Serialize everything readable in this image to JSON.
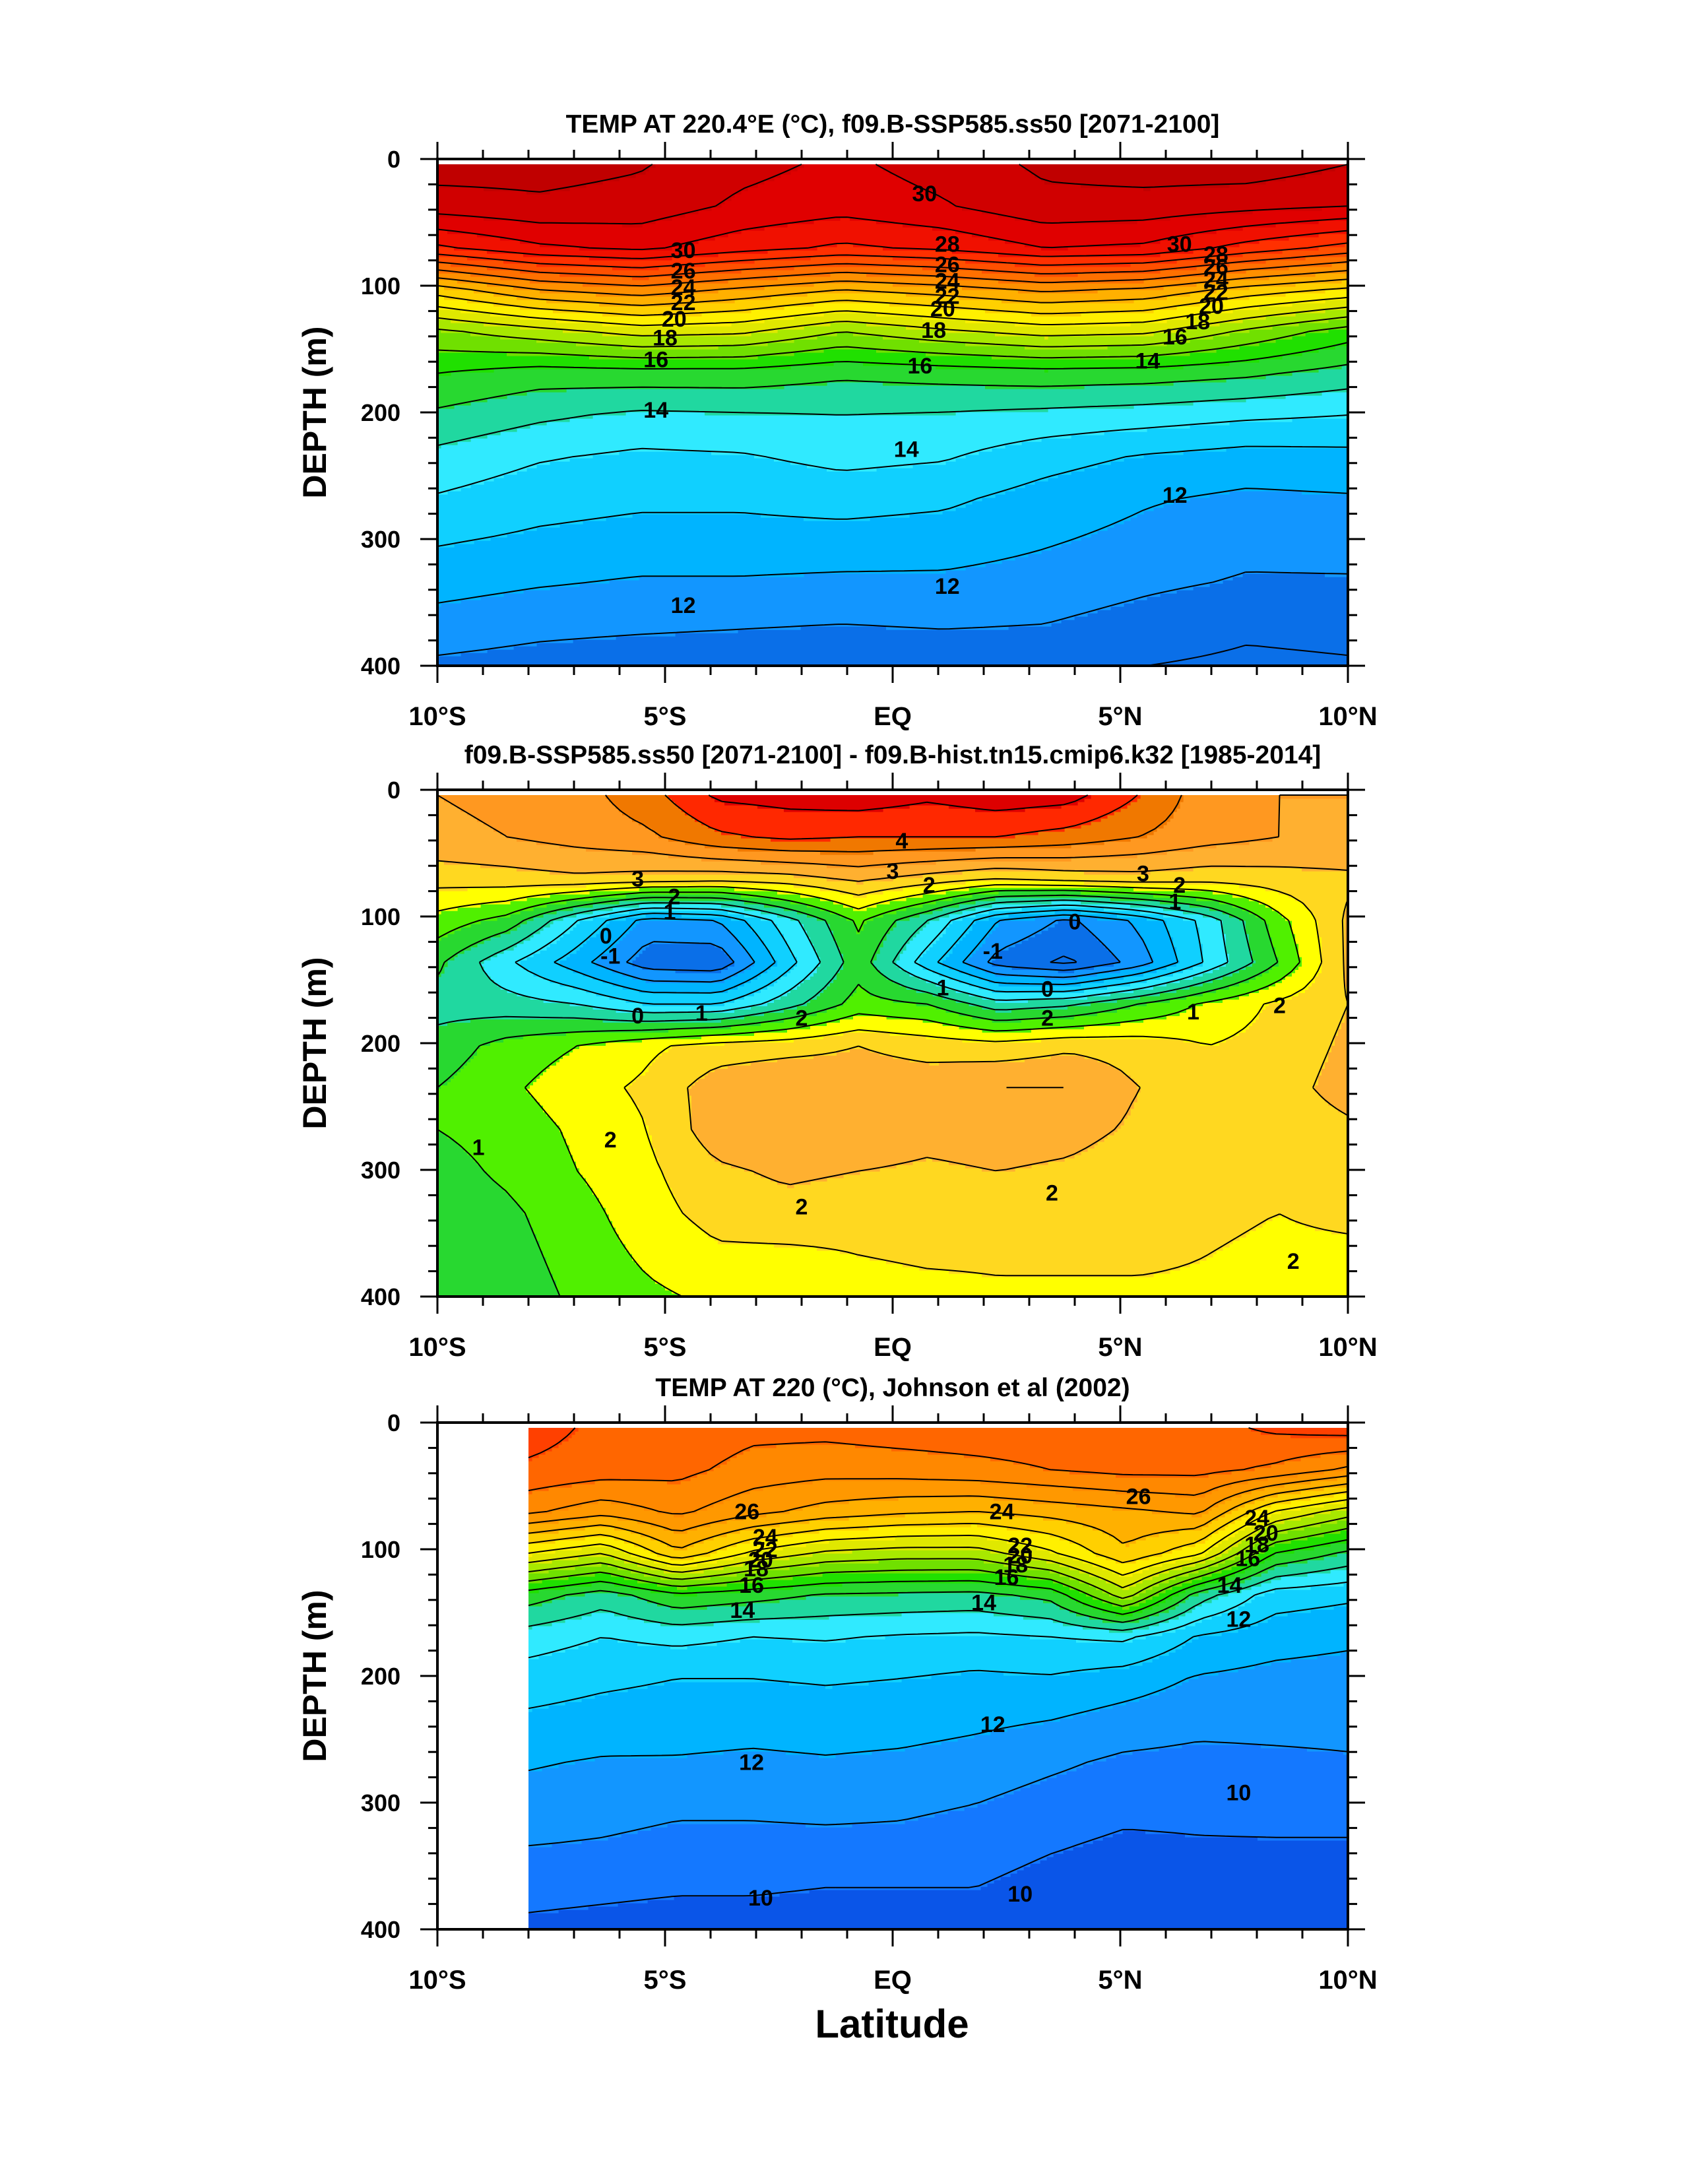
{
  "figure": {
    "xlabel": "Latitude"
  },
  "chart_data": [
    {
      "type": "heatmap",
      "title": "TEMP AT 220.4°E (°C), f09.B-SSP585.ss50 [2071-2100]",
      "ylabel": "DEPTH (m)",
      "x_ticks": [
        "10°S",
        "5°S",
        "EQ",
        "5°N",
        "10°N"
      ],
      "x_tick_values": [
        -10,
        -5,
        0,
        5,
        10
      ],
      "y_ticks": [
        "0",
        "100",
        "200",
        "300",
        "400"
      ],
      "y_tick_values": [
        0,
        100,
        200,
        300,
        400
      ],
      "xlim": [
        -10,
        10
      ],
      "ylim": [
        400,
        0
      ],
      "data_extent": [
        -10,
        10
      ],
      "color_levels": [
        10,
        11,
        12,
        13,
        14,
        15,
        16,
        17,
        18,
        19,
        20,
        21,
        22,
        23,
        24,
        25,
        26,
        27,
        28,
        29,
        30,
        31
      ],
      "colors": [
        "#0a6fe8",
        "#1296ff",
        "#00b4ff",
        "#10d0ff",
        "#30eaff",
        "#20d8a0",
        "#28d830",
        "#20e000",
        "#70e000",
        "#a8e800",
        "#e0e800",
        "#fff000",
        "#ffd000",
        "#ffb000",
        "#ff9000",
        "#ff7000",
        "#ff5000",
        "#ff3000",
        "#f01000",
        "#e00000",
        "#d00000",
        "#c00000"
      ],
      "field": [
        [
          31.5,
          31.4,
          31.1,
          30.3,
          29.8,
          30.4,
          31.2,
          31.5,
          31.6,
          31.0
        ],
        [
          30.5,
          30.8,
          30.6,
          29.8,
          29.4,
          29.9,
          30.7,
          30.6,
          30.3,
          30.0
        ],
        [
          27.8,
          28.8,
          29.2,
          28.4,
          27.8,
          28.2,
          29.0,
          28.8,
          27.6,
          26.6
        ],
        [
          22.5,
          24.0,
          24.6,
          23.8,
          23.0,
          23.5,
          24.2,
          23.8,
          22.6,
          21.8
        ],
        [
          18.8,
          19.6,
          20.4,
          20.2,
          19.0,
          19.8,
          20.4,
          20.2,
          18.8,
          17.5
        ],
        [
          17.0,
          16.5,
          16.6,
          16.6,
          16.2,
          16.4,
          16.6,
          16.5,
          16.2,
          15.6
        ],
        [
          15.8,
          15.2,
          14.8,
          14.9,
          15.0,
          14.9,
          14.7,
          14.5,
          14.2,
          14.0
        ],
        [
          14.7,
          14.1,
          13.8,
          13.9,
          14.3,
          14.1,
          13.4,
          12.9,
          12.6,
          12.7
        ],
        [
          13.9,
          13.4,
          13.2,
          13.2,
          13.4,
          13.2,
          12.6,
          12.1,
          11.8,
          11.9
        ],
        [
          13.1,
          12.8,
          12.6,
          12.6,
          12.6,
          12.5,
          12.1,
          11.7,
          11.3,
          11.4
        ],
        [
          12.4,
          12.1,
          11.9,
          11.9,
          11.8,
          11.8,
          11.6,
          11.2,
          10.9,
          10.9
        ],
        [
          11.6,
          11.3,
          11.2,
          11.1,
          11.0,
          11.1,
          11.0,
          10.6,
          10.2,
          10.3
        ],
        [
          10.8,
          10.6,
          10.4,
          10.3,
          10.2,
          10.3,
          10.3,
          10.0,
          9.8,
          9.9
        ]
      ],
      "contour_labels": [
        {
          "text": "30",
          "x": 0.7,
          "y": 27
        },
        {
          "text": "30",
          "x": -4.6,
          "y": 72
        },
        {
          "text": "30",
          "x": 6.3,
          "y": 67
        },
        {
          "text": "28",
          "x": 1.2,
          "y": 67
        },
        {
          "text": "28",
          "x": 7.1,
          "y": 75
        },
        {
          "text": "26",
          "x": -4.6,
          "y": 88
        },
        {
          "text": "26",
          "x": 1.2,
          "y": 83
        },
        {
          "text": "26",
          "x": 7.1,
          "y": 85
        },
        {
          "text": "24",
          "x": -4.6,
          "y": 101
        },
        {
          "text": "24",
          "x": 1.2,
          "y": 96
        },
        {
          "text": "24",
          "x": 7.1,
          "y": 95
        },
        {
          "text": "22",
          "x": -4.6,
          "y": 113
        },
        {
          "text": "22",
          "x": 1.2,
          "y": 108
        },
        {
          "text": "22",
          "x": 7.1,
          "y": 105
        },
        {
          "text": "20",
          "x": -4.8,
          "y": 126
        },
        {
          "text": "20",
          "x": 1.1,
          "y": 118
        },
        {
          "text": "20",
          "x": 7.0,
          "y": 116
        },
        {
          "text": "18",
          "x": -5.0,
          "y": 141
        },
        {
          "text": "18",
          "x": 0.9,
          "y": 135
        },
        {
          "text": "18",
          "x": 6.7,
          "y": 128
        },
        {
          "text": "16",
          "x": -5.2,
          "y": 158
        },
        {
          "text": "16",
          "x": 0.6,
          "y": 163
        },
        {
          "text": "16",
          "x": 6.2,
          "y": 140
        },
        {
          "text": "14",
          "x": -5.2,
          "y": 198
        },
        {
          "text": "14",
          "x": 0.3,
          "y": 229
        },
        {
          "text": "14",
          "x": 5.6,
          "y": 159
        },
        {
          "text": "12",
          "x": -4.6,
          "y": 352
        },
        {
          "text": "12",
          "x": 1.2,
          "y": 337
        },
        {
          "text": "12",
          "x": 6.2,
          "y": 265
        }
      ]
    },
    {
      "type": "heatmap",
      "title": "f09.B-SSP585.ss50 [2071-2100] - f09.B-hist.tn15.cmip6.k32 [1985-2014]",
      "ylabel": "DEPTH (m)",
      "x_ticks": [
        "10°S",
        "5°S",
        "EQ",
        "5°N",
        "10°N"
      ],
      "x_tick_values": [
        -10,
        -5,
        0,
        5,
        10
      ],
      "y_ticks": [
        "0",
        "100",
        "200",
        "300",
        "400"
      ],
      "y_tick_values": [
        0,
        100,
        200,
        300,
        400
      ],
      "xlim": [
        -10,
        10
      ],
      "ylim": [
        400,
        0
      ],
      "data_extent": [
        -10,
        10
      ],
      "color_levels": [
        -2.5,
        -2.0,
        -1.5,
        -1.0,
        -0.5,
        0,
        0.5,
        1.0,
        1.5,
        2.0,
        2.5,
        3.0,
        3.5,
        4.0,
        4.5
      ],
      "colors": [
        "#0a6fe8",
        "#1296ff",
        "#00b4ff",
        "#10d0ff",
        "#30eaff",
        "#20d8a0",
        "#28d830",
        "#50f000",
        "#ffff00",
        "#ffd820",
        "#ffb030",
        "#ff9820",
        "#f07800",
        "#ff2800",
        "#dd0000"
      ],
      "field": [
        [
          3.0,
          3.1,
          3.3,
          3.8,
          4.6,
          4.7,
          4.8,
          4.6,
          4.8,
          4.7,
          4.0,
          3.2,
          3.0,
          3.0
        ],
        [
          2.9,
          3.0,
          3.2,
          3.4,
          3.9,
          4.1,
          4.0,
          4.0,
          4.0,
          3.8,
          3.5,
          3.2,
          3.0,
          2.9
        ],
        [
          2.2,
          2.3,
          2.4,
          2.3,
          2.2,
          2.3,
          2.6,
          2.3,
          2.0,
          2.2,
          2.3,
          2.2,
          2.3,
          2.4
        ],
        [
          1.3,
          0.8,
          -0.5,
          -1.7,
          -1.5,
          -0.2,
          1.1,
          0.0,
          -1.5,
          -2.1,
          -1.4,
          -0.3,
          1.3,
          2.6
        ],
        [
          0.6,
          -0.4,
          -1.3,
          -2.3,
          -2.4,
          -0.7,
          0.8,
          -0.8,
          -2.2,
          -2.6,
          -1.8,
          -0.4,
          1.0,
          2.6
        ],
        [
          0.3,
          0.2,
          0.0,
          -0.5,
          -0.5,
          0.3,
          1.2,
          1.0,
          0.2,
          0.4,
          1.0,
          1.6,
          2.1,
          2.5
        ],
        [
          0.7,
          1.2,
          1.5,
          1.9,
          2.2,
          2.3,
          2.5,
          2.3,
          2.2,
          2.4,
          2.3,
          2.0,
          2.2,
          2.6
        ],
        [
          1.0,
          1.4,
          1.8,
          2.1,
          2.8,
          3.0,
          2.8,
          2.8,
          3.0,
          3.0,
          2.5,
          2.3,
          2.3,
          2.7
        ],
        [
          1.0,
          1.2,
          1.6,
          2.0,
          2.8,
          3.0,
          2.9,
          2.7,
          2.8,
          2.7,
          2.4,
          2.2,
          2.2,
          2.4
        ],
        [
          0.8,
          1.1,
          1.5,
          1.9,
          2.4,
          2.6,
          2.5,
          2.4,
          2.5,
          2.4,
          2.2,
          2.2,
          2.1,
          2.3
        ],
        [
          0.7,
          0.9,
          1.3,
          1.8,
          2.2,
          2.3,
          2.2,
          2.2,
          2.3,
          2.3,
          2.2,
          2.1,
          2.0,
          2.1
        ],
        [
          0.6,
          0.8,
          1.2,
          1.6,
          1.9,
          1.9,
          2.0,
          2.1,
          2.1,
          2.1,
          2.1,
          2.0,
          1.9,
          1.9
        ],
        [
          0.6,
          0.7,
          1.1,
          1.4,
          1.6,
          1.7,
          1.7,
          1.8,
          1.9,
          1.9,
          1.9,
          1.9,
          1.8,
          1.7
        ]
      ],
      "contour_labels": [
        {
          "text": "4",
          "x": 0.2,
          "y": 40
        },
        {
          "text": "3",
          "x": -5.6,
          "y": 70
        },
        {
          "text": "3",
          "x": 0.0,
          "y": 64
        },
        {
          "text": "3",
          "x": 5.5,
          "y": 66
        },
        {
          "text": "2",
          "x": -4.8,
          "y": 84
        },
        {
          "text": "2",
          "x": 0.8,
          "y": 75
        },
        {
          "text": "2",
          "x": 6.3,
          "y": 75
        },
        {
          "text": "1",
          "x": -4.9,
          "y": 96
        },
        {
          "text": "1",
          "x": 6.2,
          "y": 88
        },
        {
          "text": "0",
          "x": -6.3,
          "y": 115
        },
        {
          "text": "0",
          "x": 4.0,
          "y": 104
        },
        {
          "text": "-1",
          "x": -6.2,
          "y": 131
        },
        {
          "text": "-1",
          "x": 2.2,
          "y": 127
        },
        {
          "text": "1",
          "x": 1.1,
          "y": 156
        },
        {
          "text": "0",
          "x": 3.4,
          "y": 157
        },
        {
          "text": "0",
          "x": -5.6,
          "y": 178
        },
        {
          "text": "1",
          "x": -4.2,
          "y": 176
        },
        {
          "text": "2",
          "x": -2.0,
          "y": 180
        },
        {
          "text": "2",
          "x": 3.4,
          "y": 180
        },
        {
          "text": "1",
          "x": 6.6,
          "y": 175
        },
        {
          "text": "2",
          "x": 8.5,
          "y": 170
        },
        {
          "text": "1",
          "x": -9.1,
          "y": 282
        },
        {
          "text": "2",
          "x": -6.2,
          "y": 276
        },
        {
          "text": "2",
          "x": -2.0,
          "y": 329
        },
        {
          "text": "2",
          "x": 3.5,
          "y": 318
        },
        {
          "text": "2",
          "x": 8.8,
          "y": 372
        }
      ]
    },
    {
      "type": "heatmap",
      "title": "TEMP AT 220 (°C), Johnson et al (2002)",
      "ylabel": "DEPTH (m)",
      "x_ticks": [
        "10°S",
        "5°S",
        "EQ",
        "5°N",
        "10°N"
      ],
      "x_tick_values": [
        -10,
        -5,
        0,
        5,
        10
      ],
      "y_ticks": [
        "0",
        "100",
        "200",
        "300",
        "400"
      ],
      "y_tick_values": [
        0,
        100,
        200,
        300,
        400
      ],
      "xlim": [
        -10,
        10
      ],
      "ylim": [
        400,
        0
      ],
      "data_extent": [
        -8,
        10
      ],
      "color_levels": [
        9,
        10,
        11,
        12,
        13,
        14,
        15,
        16,
        17,
        18,
        19,
        20,
        21,
        22,
        23,
        24,
        25,
        26,
        27
      ],
      "colors": [
        "#0a55e8",
        "#1478ff",
        "#1296ff",
        "#00b4ff",
        "#10d0ff",
        "#30eaff",
        "#20d8a0",
        "#28d830",
        "#20e000",
        "#70e000",
        "#a8e800",
        "#e0e800",
        "#fff000",
        "#ffd000",
        "#ffb000",
        "#ff9800",
        "#ff8800",
        "#ff6600",
        "#ff4000"
      ],
      "field": [
        [
          27.5,
          26.7,
          26.8,
          26.3,
          26.3,
          26.5,
          26.6,
          26.6,
          26.6,
          26.6,
          27.2,
          27.5
        ],
        [
          26.8,
          26.5,
          26.3,
          25.6,
          25.4,
          25.5,
          25.7,
          26.0,
          26.3,
          26.3,
          25.8,
          24.8
        ],
        [
          25.2,
          24.4,
          25.2,
          24.3,
          23.6,
          23.2,
          23.0,
          23.4,
          23.8,
          24.2,
          21.0,
          19.5
        ],
        [
          21.0,
          20.0,
          22.8,
          20.8,
          19.8,
          19.5,
          19.5,
          20.8,
          22.8,
          21.2,
          17.0,
          15.8
        ],
        [
          16.5,
          15.5,
          16.8,
          16.4,
          15.9,
          15.8,
          15.7,
          16.3,
          19.5,
          15.5,
          13.5,
          13.2
        ],
        [
          14.5,
          14.0,
          14.3,
          14.0,
          14.1,
          13.9,
          13.8,
          14.0,
          14.2,
          12.9,
          12.4,
          12.2
        ],
        [
          13.5,
          13.2,
          13.0,
          13.0,
          13.1,
          13.0,
          12.8,
          12.9,
          12.5,
          11.9,
          11.7,
          11.6
        ],
        [
          12.8,
          12.6,
          12.5,
          12.4,
          12.5,
          12.4,
          12.2,
          12.0,
          11.6,
          11.3,
          11.3,
          11.3
        ],
        [
          12.1,
          11.9,
          11.9,
          11.8,
          11.9,
          11.8,
          11.6,
          11.2,
          10.8,
          10.7,
          10.8,
          10.9
        ],
        [
          11.6,
          11.4,
          11.2,
          11.2,
          11.3,
          11.2,
          11.0,
          10.6,
          10.3,
          10.3,
          10.4,
          10.4
        ],
        [
          11.0,
          10.9,
          10.7,
          10.7,
          10.7,
          10.7,
          10.5,
          10.1,
          9.8,
          9.9,
          9.9,
          9.9
        ],
        [
          10.3,
          10.2,
          10.1,
          10.1,
          10.0,
          10.0,
          10.0,
          9.6,
          9.4,
          9.5,
          9.5,
          9.5
        ],
        [
          9.8,
          9.7,
          9.6,
          9.6,
          9.5,
          9.5,
          9.5,
          9.2,
          9.0,
          9.1,
          9.1,
          9.1
        ]
      ],
      "contour_labels": [
        {
          "text": "26",
          "x": -3.2,
          "y": 70
        },
        {
          "text": "24",
          "x": 2.4,
          "y": 70
        },
        {
          "text": "26",
          "x": 5.4,
          "y": 58
        },
        {
          "text": "24",
          "x": 8.0,
          "y": 75
        },
        {
          "text": "24",
          "x": -2.8,
          "y": 90
        },
        {
          "text": "22",
          "x": -2.8,
          "y": 100
        },
        {
          "text": "20",
          "x": -2.9,
          "y": 108
        },
        {
          "text": "18",
          "x": -3.0,
          "y": 115
        },
        {
          "text": "22",
          "x": 2.8,
          "y": 97
        },
        {
          "text": "20",
          "x": 2.8,
          "y": 105
        },
        {
          "text": "18",
          "x": 2.7,
          "y": 112
        },
        {
          "text": "16",
          "x": -3.1,
          "y": 128
        },
        {
          "text": "16",
          "x": 2.5,
          "y": 122
        },
        {
          "text": "20",
          "x": 8.2,
          "y": 87
        },
        {
          "text": "18",
          "x": 8.0,
          "y": 96
        },
        {
          "text": "16",
          "x": 7.8,
          "y": 107
        },
        {
          "text": "14",
          "x": -3.3,
          "y": 148
        },
        {
          "text": "14",
          "x": 2.0,
          "y": 142
        },
        {
          "text": "14",
          "x": 7.4,
          "y": 128
        },
        {
          "text": "12",
          "x": 7.6,
          "y": 155
        },
        {
          "text": "12",
          "x": 2.2,
          "y": 238
        },
        {
          "text": "12",
          "x": -3.1,
          "y": 268
        },
        {
          "text": "10",
          "x": 7.6,
          "y": 292
        },
        {
          "text": "10",
          "x": -2.9,
          "y": 375
        },
        {
          "text": "10",
          "x": 2.8,
          "y": 372
        }
      ]
    }
  ]
}
